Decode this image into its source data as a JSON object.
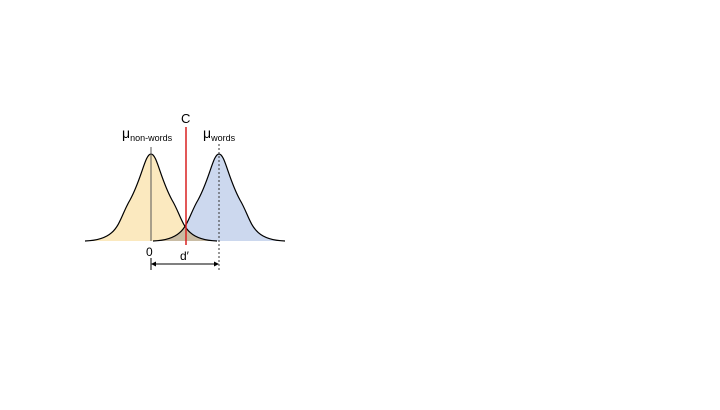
{
  "diagram": {
    "mu_symbol": "μ",
    "nonwords_subscript": "non-words",
    "words_subscript": "words",
    "criterion_label": "C",
    "zero_label": "0",
    "dprime_label": "d′",
    "colors": {
      "nonwords_fill": "#fbe9bf",
      "words_fill": "#ccd8ee",
      "overlap_fill": "#c9bca4",
      "criterion_line": "#d92020",
      "outline": "#000000"
    }
  }
}
